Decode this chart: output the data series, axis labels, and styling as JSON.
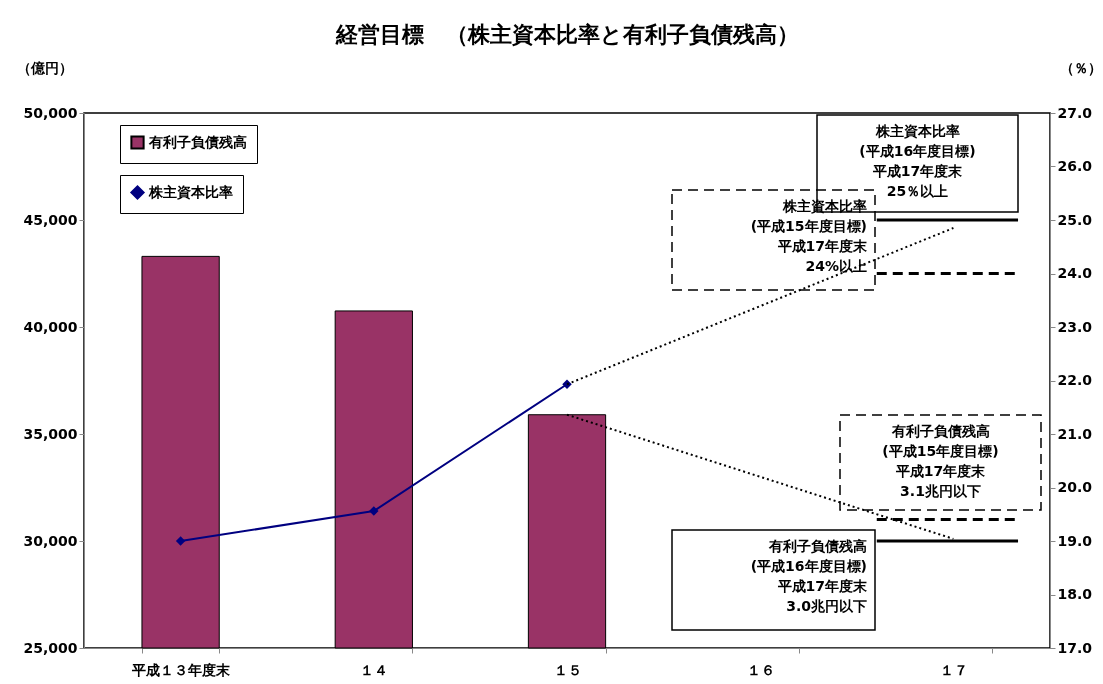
{
  "chart_data": {
    "type": "bar",
    "title": "経営目標　（株主資本比率と有利子負債残高）",
    "ylabel": "（億円）",
    "y2label": "（％）",
    "categories": [
      "平成１３年度末",
      "１４",
      "１５",
      "１６",
      "１７"
    ],
    "series": [
      {
        "name": "有利子負債残高",
        "type": "bar",
        "color": "#993366",
        "values": [
          43300,
          40750,
          35900,
          null,
          null
        ]
      },
      {
        "name": "株主資本比率",
        "type": "line",
        "axis": "y2",
        "color": "#000080",
        "marker": "diamond",
        "values": [
          19.0,
          19.56,
          21.93,
          null,
          null
        ]
      },
      {
        "type": "line",
        "axis": "y2",
        "color": "#000000",
        "line_style": "dotted",
        "marker": "none",
        "x": [
          "１５",
          "１７"
        ],
        "values": [
          21.93,
          24.85
        ]
      },
      {
        "type": "line",
        "color": "#000000",
        "line_style": "dotted",
        "marker": "none",
        "x": [
          "１５",
          "１７"
        ],
        "values": [
          35900,
          30100
        ]
      }
    ],
    "ylim": [
      25000,
      50000
    ],
    "yticks": [
      {
        "value": 25000,
        "label": "25,000"
      },
      {
        "value": 30000,
        "label": "30,000"
      },
      {
        "value": 35000,
        "label": "35,000"
      },
      {
        "value": 40000,
        "label": "40,000"
      },
      {
        "value": 45000,
        "label": "45,000"
      },
      {
        "value": 50000,
        "label": "50,000"
      }
    ],
    "y2lim": [
      17,
      27
    ],
    "y2ticks": [
      {
        "value": 17,
        "label": "17.0"
      },
      {
        "value": 18,
        "label": "18.0"
      },
      {
        "value": 19,
        "label": "19.0"
      },
      {
        "value": 20,
        "label": "20.0"
      },
      {
        "value": 21,
        "label": "21.0"
      },
      {
        "value": 22,
        "label": "22.0"
      },
      {
        "value": 23,
        "label": "23.0"
      },
      {
        "value": 24,
        "label": "24.0"
      },
      {
        "value": 25,
        "label": "25.0"
      },
      {
        "value": 26,
        "label": "26.0"
      },
      {
        "value": 27,
        "label": "27.0"
      }
    ],
    "ref_lines": [
      {
        "axis": "y2",
        "value": 25,
        "label": "株主資本比率\n(平成16年度目標)\n平成17年度末\n25％以上",
        "color": "#000000",
        "line_style": "solid"
      },
      {
        "axis": "y2",
        "value": 24,
        "label": "株主資本比率\n(平成15年度目標)\n平成17年度末\n24%以上",
        "color": "#000000",
        "line_style": "dashed"
      },
      {
        "axis": "y",
        "value": 31000,
        "label": "有利子負債残高\n(平成15年度目標)\n平成17年度末\n3.1兆円以下",
        "color": "#000000",
        "line_style": "dashed"
      },
      {
        "axis": "y",
        "value": 30000,
        "label": "有利子負債残高\n(平成16年度目標)\n平成17年度末\n3.0兆円以下",
        "color": "#000000",
        "line_style": "solid"
      }
    ],
    "legend": "top left",
    "grid": false
  }
}
